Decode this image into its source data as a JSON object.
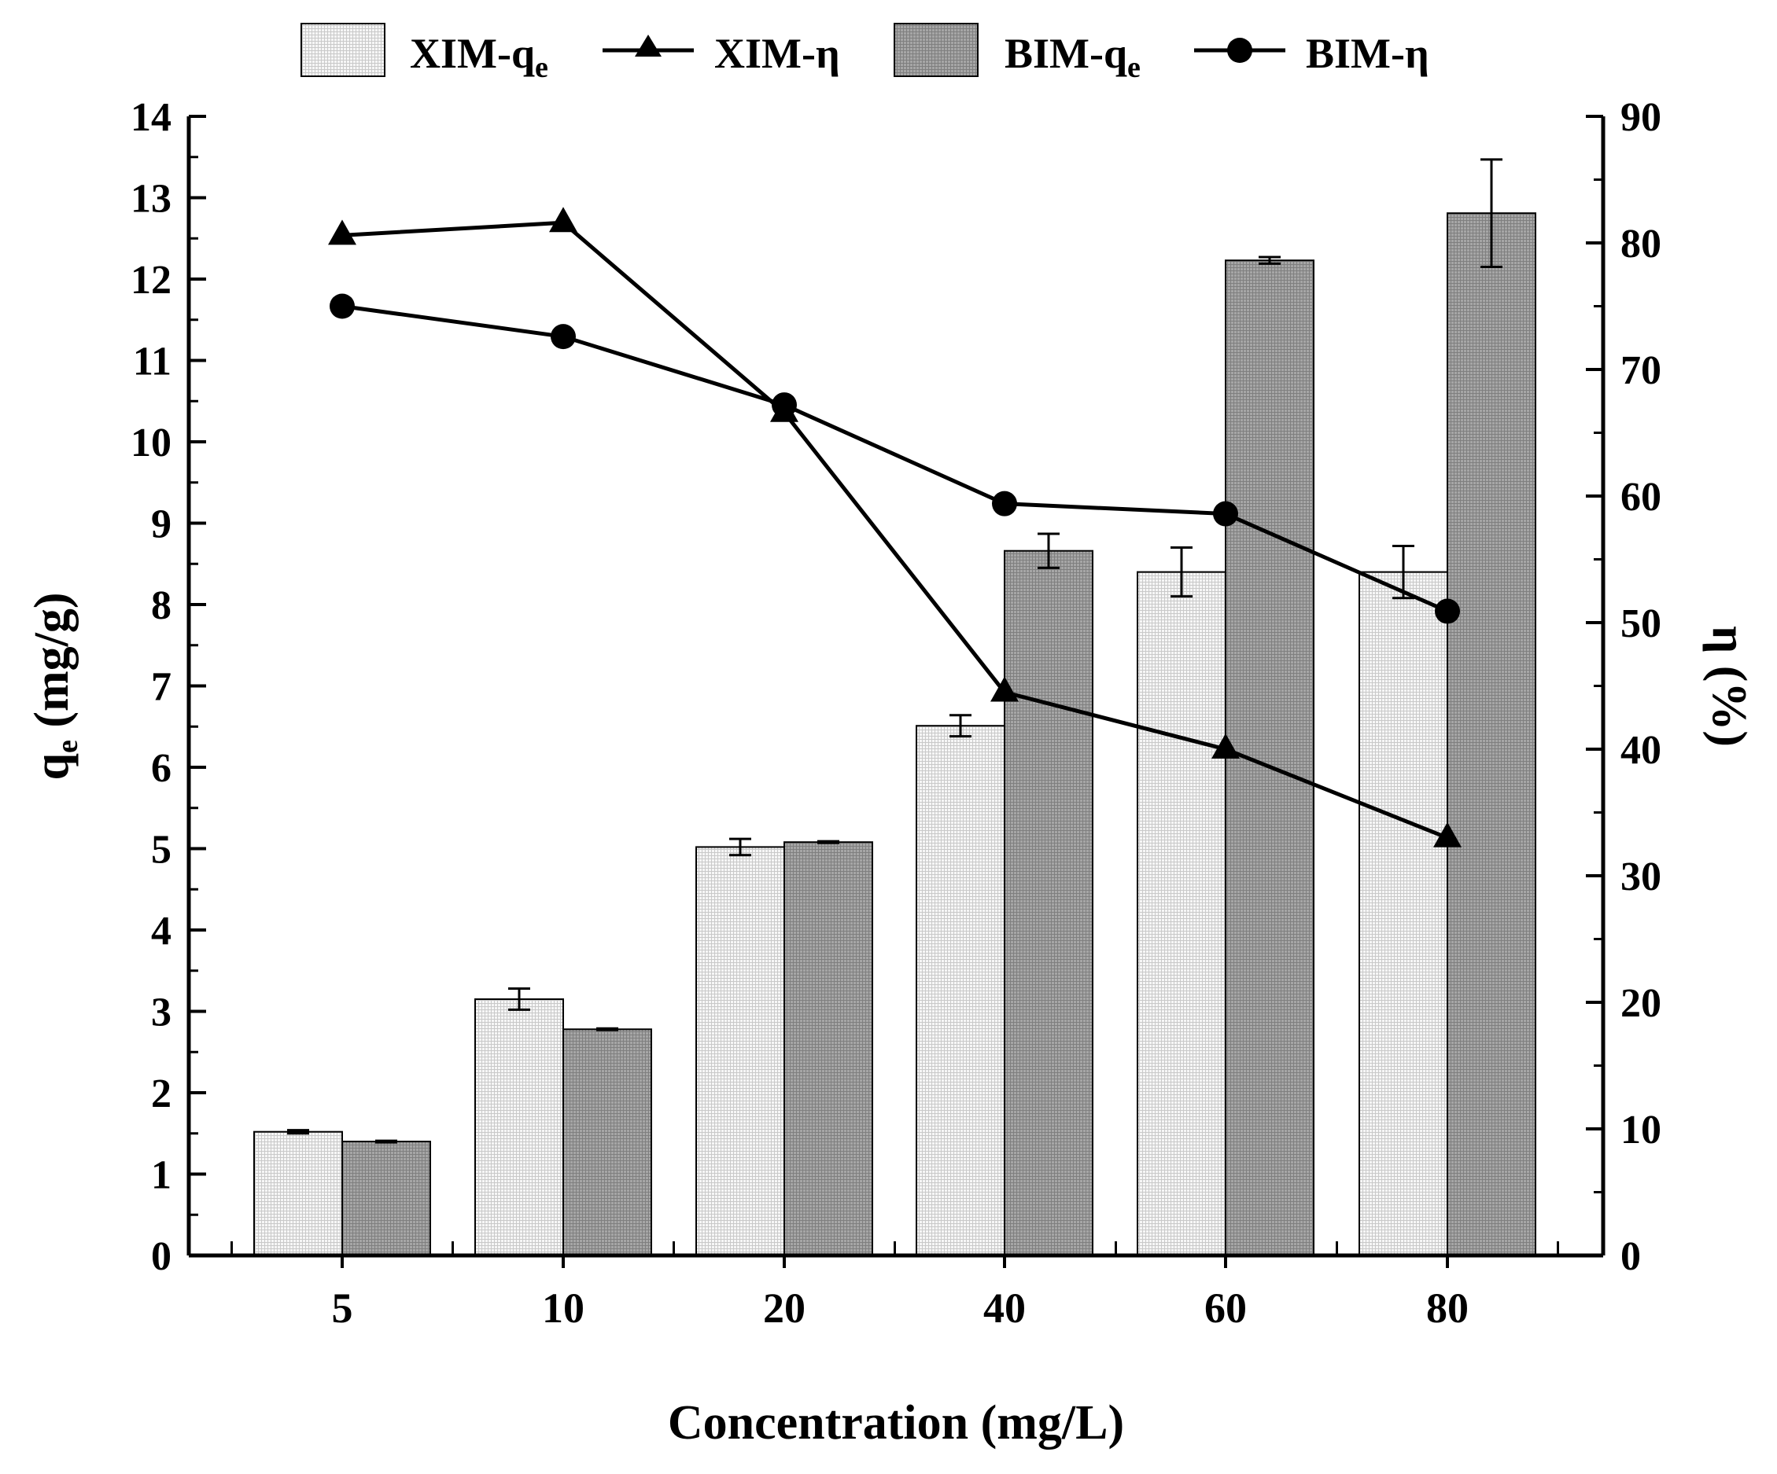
{
  "chart_data": {
    "type": "bar",
    "title": "",
    "xlabel": "Concentration (mg/L)",
    "ylabel_left": {
      "main": "q",
      "sub": "e",
      "unit": " (mg/g)"
    },
    "ylabel_right": "η (%)",
    "categories": [
      "5",
      "10",
      "20",
      "40",
      "60",
      "80"
    ],
    "ylim_left": [
      0,
      14
    ],
    "yticks_left": [
      0,
      1,
      2,
      3,
      4,
      5,
      6,
      7,
      8,
      9,
      10,
      11,
      12,
      13,
      14
    ],
    "ylim_right": [
      0,
      90
    ],
    "yticks_right": [
      0,
      10,
      20,
      30,
      40,
      50,
      60,
      70,
      80,
      90
    ],
    "legend_position": "top",
    "bar_series": [
      {
        "name": "XIM-q",
        "sub": "e",
        "values": [
          1.52,
          3.15,
          5.02,
          6.51,
          8.4,
          8.4
        ],
        "errors": [
          0.02,
          0.13,
          0.1,
          0.13,
          0.3,
          0.32
        ],
        "color": "#f1f1f1",
        "pattern": "fine-grid-light"
      },
      {
        "name": "BIM-q",
        "sub": "e",
        "values": [
          1.4,
          2.78,
          5.08,
          8.66,
          12.23,
          12.81
        ],
        "errors": [
          0.01,
          0.01,
          0.01,
          0.21,
          0.04,
          0.66
        ],
        "color": "#a2a2a2",
        "pattern": "fine-grid-dark"
      }
    ],
    "line_series": [
      {
        "name": "XIM-η",
        "marker": "triangle",
        "values": [
          80.6,
          81.6,
          66.6,
          44.5,
          40.0,
          33.0
        ]
      },
      {
        "name": "BIM-η",
        "marker": "circle",
        "values": [
          75.0,
          72.6,
          67.2,
          59.4,
          58.6,
          50.9
        ]
      }
    ]
  }
}
